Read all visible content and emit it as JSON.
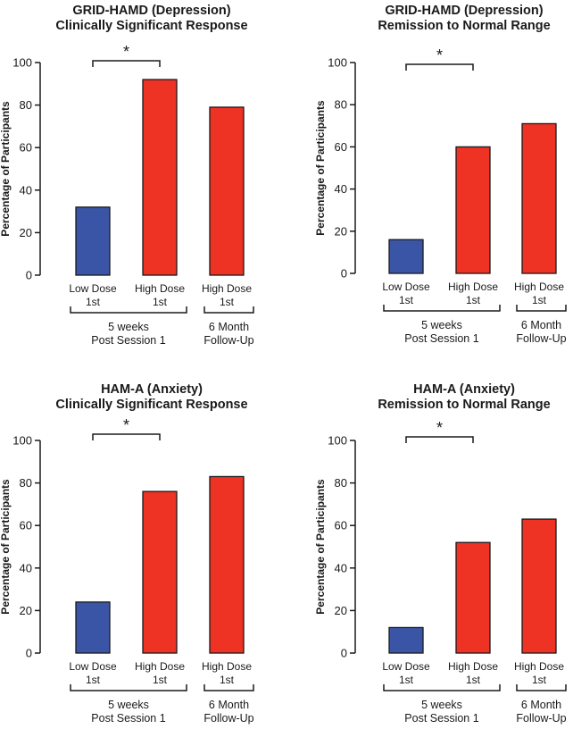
{
  "chart_data": [
    {
      "type": "bar",
      "title": [
        "GRID-HAMD (Depression)",
        "Clinically Significant Response"
      ],
      "ylabel": "Percentage of Participants",
      "ylim": [
        0,
        100
      ],
      "yticks": [
        0,
        20,
        40,
        60,
        80,
        100
      ],
      "categories": [
        [
          "Low Dose",
          "1st"
        ],
        [
          "High Dose",
          "1st"
        ],
        [
          "High Dose",
          "1st"
        ]
      ],
      "values": [
        32,
        92,
        79
      ],
      "colors": [
        "#3b55a6",
        "#ee3224",
        "#ee3224"
      ],
      "groups": [
        {
          "label": [
            "5 weeks",
            "Post Session 1"
          ],
          "from": 0,
          "to": 1
        },
        {
          "label": [
            "6 Month",
            "Follow-Up"
          ],
          "from": 2,
          "to": 2
        }
      ],
      "significance": {
        "from": 0,
        "to": 1,
        "label": "*"
      }
    },
    {
      "type": "bar",
      "title": [
        "GRID-HAMD (Depression)",
        "Remission to Normal Range"
      ],
      "ylabel": "Percentage of Participants",
      "ylim": [
        0,
        100
      ],
      "yticks": [
        0,
        20,
        40,
        60,
        80,
        100
      ],
      "categories": [
        [
          "Low Dose",
          "1st"
        ],
        [
          "High Dose",
          "1st"
        ],
        [
          "High Dose",
          "1st"
        ]
      ],
      "values": [
        16,
        60,
        71
      ],
      "colors": [
        "#3b55a6",
        "#ee3224",
        "#ee3224"
      ],
      "groups": [
        {
          "label": [
            "5 weeks",
            "Post Session 1"
          ],
          "from": 0,
          "to": 1
        },
        {
          "label": [
            "6 Month",
            "Follow-Up"
          ],
          "from": 2,
          "to": 2
        }
      ],
      "significance": {
        "from": 0,
        "to": 1,
        "label": "*"
      }
    },
    {
      "type": "bar",
      "title": [
        "HAM-A (Anxiety)",
        "Clinically Significant Response"
      ],
      "ylabel": "Percentage of Participants",
      "ylim": [
        0,
        100
      ],
      "yticks": [
        0,
        20,
        40,
        60,
        80,
        100
      ],
      "categories": [
        [
          "Low Dose",
          "1st"
        ],
        [
          "High Dose",
          "1st"
        ],
        [
          "High Dose",
          "1st"
        ]
      ],
      "values": [
        24,
        76,
        83
      ],
      "colors": [
        "#3b55a6",
        "#ee3224",
        "#ee3224"
      ],
      "groups": [
        {
          "label": [
            "5 weeks",
            "Post Session 1"
          ],
          "from": 0,
          "to": 1
        },
        {
          "label": [
            "6 Month",
            "Follow-Up"
          ],
          "from": 2,
          "to": 2
        }
      ],
      "significance": {
        "from": 0,
        "to": 1,
        "label": "*"
      }
    },
    {
      "type": "bar",
      "title": [
        "HAM-A (Anxiety)",
        "Remission to Normal Range"
      ],
      "ylabel": "Percentage of Participants",
      "ylim": [
        0,
        100
      ],
      "yticks": [
        0,
        20,
        40,
        60,
        80,
        100
      ],
      "categories": [
        [
          "Low Dose",
          "1st"
        ],
        [
          "High Dose",
          "1st"
        ],
        [
          "High Dose",
          "1st"
        ]
      ],
      "values": [
        12,
        52,
        63
      ],
      "colors": [
        "#3b55a6",
        "#ee3224",
        "#ee3224"
      ],
      "groups": [
        {
          "label": [
            "5 weeks",
            "Post Session 1"
          ],
          "from": 0,
          "to": 1
        },
        {
          "label": [
            "6 Month",
            "Follow-Up"
          ],
          "from": 2,
          "to": 2
        }
      ],
      "significance": {
        "from": 0,
        "to": 1,
        "label": "*"
      }
    }
  ]
}
